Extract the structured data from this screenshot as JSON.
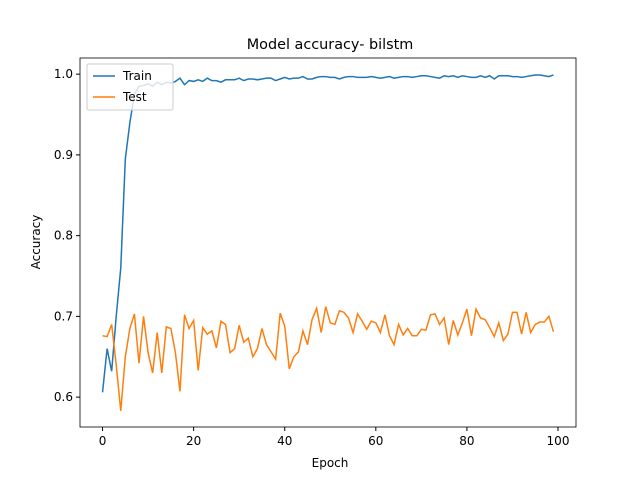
{
  "chart_data": {
    "type": "line",
    "title": "Model accuracy- bilstm",
    "xlabel": "Epoch",
    "ylabel": "Accuracy",
    "x": [
      0,
      1,
      2,
      3,
      4,
      5,
      6,
      7,
      8,
      9,
      10,
      11,
      12,
      13,
      14,
      15,
      16,
      17,
      18,
      19,
      20,
      21,
      22,
      23,
      24,
      25,
      26,
      27,
      28,
      29,
      30,
      31,
      32,
      33,
      34,
      35,
      36,
      37,
      38,
      39,
      40,
      41,
      42,
      43,
      44,
      45,
      46,
      47,
      48,
      49,
      50,
      51,
      52,
      53,
      54,
      55,
      56,
      57,
      58,
      59,
      60,
      61,
      62,
      63,
      64,
      65,
      66,
      67,
      68,
      69,
      70,
      71,
      72,
      73,
      74,
      75,
      76,
      77,
      78,
      79,
      80,
      81,
      82,
      83,
      84,
      85,
      86,
      87,
      88,
      89,
      90,
      91,
      92,
      93,
      94,
      95,
      96,
      97,
      98,
      99
    ],
    "series": [
      {
        "name": "Train",
        "color": "#1f77b4",
        "values": [
          0.606,
          0.66,
          0.632,
          0.7,
          0.76,
          0.895,
          0.94,
          0.975,
          0.985,
          0.986,
          0.988,
          0.985,
          0.99,
          0.987,
          0.99,
          0.989,
          0.991,
          0.995,
          0.987,
          0.992,
          0.991,
          0.993,
          0.991,
          0.995,
          0.992,
          0.992,
          0.99,
          0.993,
          0.993,
          0.993,
          0.995,
          0.992,
          0.994,
          0.994,
          0.993,
          0.994,
          0.995,
          0.995,
          0.992,
          0.994,
          0.996,
          0.994,
          0.995,
          0.995,
          0.997,
          0.994,
          0.994,
          0.996,
          0.997,
          0.997,
          0.996,
          0.996,
          0.994,
          0.996,
          0.997,
          0.997,
          0.996,
          0.996,
          0.996,
          0.997,
          0.996,
          0.995,
          0.996,
          0.997,
          0.995,
          0.996,
          0.997,
          0.997,
          0.996,
          0.997,
          0.998,
          0.998,
          0.997,
          0.996,
          0.995,
          0.998,
          0.997,
          0.998,
          0.996,
          0.998,
          0.997,
          0.996,
          0.996,
          0.998,
          0.996,
          0.998,
          0.994,
          0.998,
          0.998,
          0.998,
          0.997,
          0.997,
          0.996,
          0.997,
          0.998,
          0.999,
          0.999,
          0.998,
          0.997,
          0.999
        ]
      },
      {
        "name": "Test",
        "color": "#ff7f0e",
        "values": [
          0.676,
          0.675,
          0.69,
          0.64,
          0.583,
          0.65,
          0.685,
          0.703,
          0.642,
          0.7,
          0.655,
          0.63,
          0.68,
          0.63,
          0.687,
          0.685,
          0.655,
          0.607,
          0.702,
          0.685,
          0.695,
          0.633,
          0.686,
          0.678,
          0.682,
          0.661,
          0.694,
          0.69,
          0.655,
          0.66,
          0.689,
          0.668,
          0.673,
          0.65,
          0.66,
          0.685,
          0.665,
          0.656,
          0.647,
          0.704,
          0.688,
          0.635,
          0.65,
          0.656,
          0.682,
          0.665,
          0.696,
          0.71,
          0.68,
          0.712,
          0.692,
          0.69,
          0.707,
          0.705,
          0.698,
          0.68,
          0.703,
          0.694,
          0.684,
          0.694,
          0.692,
          0.68,
          0.702,
          0.676,
          0.665,
          0.69,
          0.677,
          0.685,
          0.676,
          0.676,
          0.684,
          0.683,
          0.702,
          0.703,
          0.69,
          0.698,
          0.665,
          0.695,
          0.677,
          0.692,
          0.709,
          0.676,
          0.709,
          0.698,
          0.696,
          0.686,
          0.675,
          0.692,
          0.67,
          0.678,
          0.705,
          0.705,
          0.678,
          0.705,
          0.68,
          0.69,
          0.693,
          0.693,
          0.7,
          0.681
        ]
      }
    ],
    "xlim": [
      -4.95,
      103.95
    ],
    "xticks": [
      0,
      20,
      40,
      60,
      80,
      100
    ],
    "ylim": [
      0.563,
      1.02
    ],
    "yticks": [
      0.6,
      0.7,
      0.8,
      0.9,
      {
        "value": 1.0,
        "label": "1.0"
      }
    ],
    "legend": "upper left"
  }
}
